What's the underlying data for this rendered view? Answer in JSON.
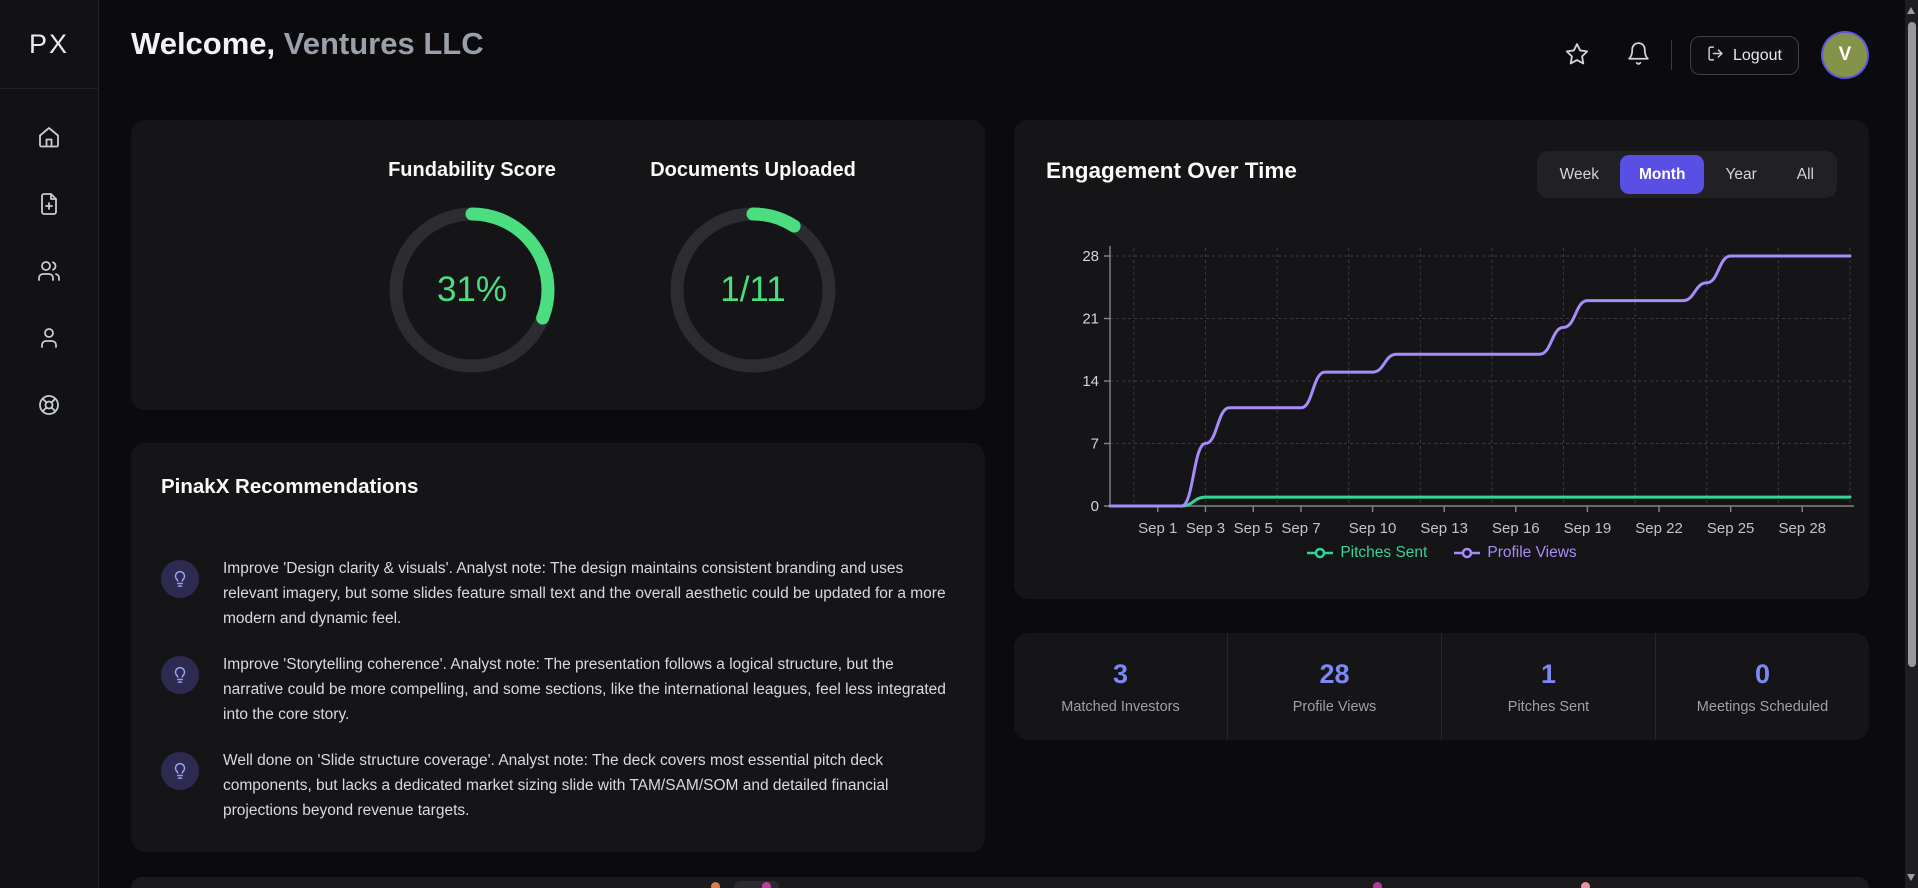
{
  "sidebar": {
    "logo": "PX",
    "items": [
      {
        "icon": "home-icon"
      },
      {
        "icon": "file-plus-icon"
      },
      {
        "icon": "users-icon"
      },
      {
        "icon": "user-icon"
      },
      {
        "icon": "help-icon"
      }
    ]
  },
  "header": {
    "welcome_prefix": "Welcome,",
    "company_name": "Ventures LLC",
    "logout_label": "Logout",
    "avatar_initial": "V"
  },
  "score_card": {
    "fundability": {
      "title": "Fundability Score",
      "display": "31%",
      "percent": 31
    },
    "documents": {
      "title": "Documents Uploaded",
      "display": "1/11",
      "uploaded": 1,
      "total": 11
    }
  },
  "recommendations": {
    "title": "PinakX Recommendations",
    "items": [
      "Improve 'Design clarity & visuals'. Analyst note: The design maintains consistent branding and uses relevant imagery, but some slides feature small text and the overall aesthetic could be updated for a more modern and dynamic feel.",
      "Improve 'Storytelling coherence'. Analyst note: The presentation follows a logical structure, but the narrative could be more compelling, and some sections, like the international leagues, feel less integrated into the core story.",
      "Well done on 'Slide structure coverage'. Analyst note: The deck covers most essential pitch deck components, but lacks a dedicated market sizing slide with TAM/SAM/SOM and detailed financial projections beyond revenue targets."
    ]
  },
  "engagement": {
    "title": "Engagement Over Time",
    "range_options": [
      "Week",
      "Month",
      "Year",
      "All"
    ],
    "selected_range": "Month"
  },
  "chart_data": {
    "type": "line",
    "title": "Engagement Over Time",
    "x": [
      "Aug 30",
      "Aug 31",
      "Sep 1",
      "Sep 2",
      "Sep 3",
      "Sep 4",
      "Sep 5",
      "Sep 6",
      "Sep 7",
      "Sep 8",
      "Sep 9",
      "Sep 10",
      "Sep 11",
      "Sep 12",
      "Sep 13",
      "Sep 14",
      "Sep 15",
      "Sep 16",
      "Sep 17",
      "Sep 18",
      "Sep 19",
      "Sep 20",
      "Sep 21",
      "Sep 22",
      "Sep 23",
      "Sep 24",
      "Sep 25",
      "Sep 26",
      "Sep 27",
      "Sep 28",
      "Sep 29",
      "Sep 30"
    ],
    "series": [
      {
        "name": "Pitches Sent",
        "color": "#34d399",
        "values": [
          0,
          0,
          0,
          0,
          1,
          1,
          1,
          1,
          1,
          1,
          1,
          1,
          1,
          1,
          1,
          1,
          1,
          1,
          1,
          1,
          1,
          1,
          1,
          1,
          1,
          1,
          1,
          1,
          1,
          1,
          1,
          1
        ]
      },
      {
        "name": "Profile Views",
        "color": "#a78bfa",
        "values": [
          0,
          0,
          0,
          0,
          7,
          11,
          11,
          11,
          11,
          15,
          15,
          15,
          17,
          17,
          17,
          17,
          17,
          17,
          17,
          20,
          23,
          23,
          23,
          23,
          23,
          25,
          28,
          28,
          28,
          28,
          28,
          28
        ]
      }
    ],
    "x_tick_labels": [
      "Sep 1",
      "Sep 3",
      "Sep 5",
      "Sep 7",
      "Sep 10",
      "Sep 13",
      "Sep 16",
      "Sep 19",
      "Sep 22",
      "Sep 25",
      "Sep 28"
    ],
    "x_tick_indices": [
      2,
      4,
      6,
      8,
      11,
      14,
      17,
      20,
      23,
      26,
      29
    ],
    "y_ticks": [
      0,
      7,
      14,
      21,
      28
    ],
    "ylim": [
      0,
      28
    ],
    "grid": true,
    "legend_position": "bottom"
  },
  "stats": [
    {
      "value": "3",
      "label": "Matched Investors"
    },
    {
      "value": "28",
      "label": "Profile Views"
    },
    {
      "value": "1",
      "label": "Pitches Sent"
    },
    {
      "value": "0",
      "label": "Meetings Scheduled"
    }
  ],
  "colors": {
    "accent_indigo": "#5a4fe4",
    "stat_number": "#7f88f2",
    "gauge_green": "#4ade80",
    "chart_green": "#34d399",
    "chart_purple": "#a78bfa",
    "avatar_olive": "#85934a"
  }
}
